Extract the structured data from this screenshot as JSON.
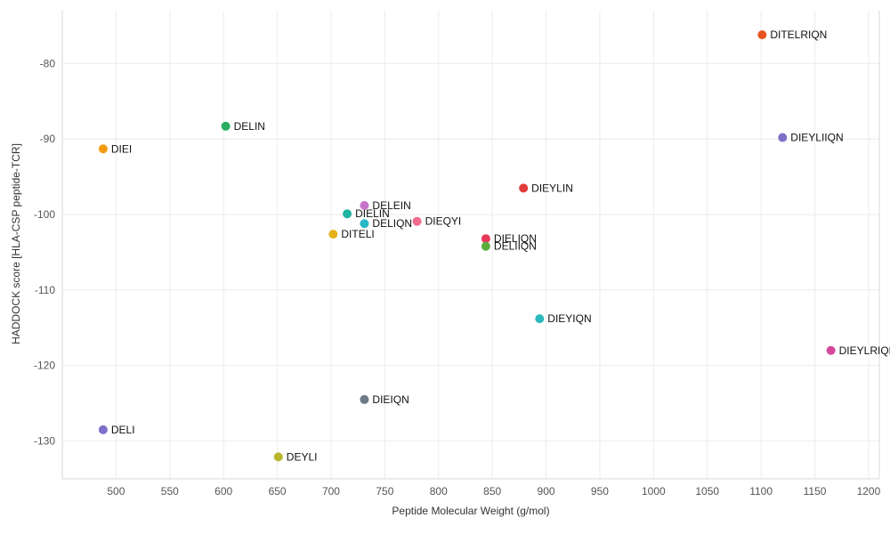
{
  "chart_data": {
    "type": "scatter",
    "title": "",
    "xlabel": "Peptide Molecular Weight (g/mol)",
    "ylabel": "HADDOCK score [HLA-CSP peptide-TCR]",
    "xlim": [
      450,
      1210
    ],
    "ylim": [
      -135,
      -73
    ],
    "xticks": [
      500,
      550,
      600,
      650,
      700,
      750,
      800,
      850,
      900,
      950,
      1000,
      1050,
      1100,
      1150,
      1200
    ],
    "yticks": [
      -80,
      -90,
      -100,
      -110,
      -120,
      -130
    ],
    "grid": true,
    "legend": "none",
    "points": [
      {
        "label": "DITELRIQN",
        "x": 1101,
        "y": -76.2,
        "color": "#e8541e"
      },
      {
        "label": "DELIN",
        "x": 602,
        "y": -88.3,
        "color": "#27ae60"
      },
      {
        "label": "DIEYLIIQN",
        "x": 1120,
        "y": -89.8,
        "color": "#7e6fc9"
      },
      {
        "label": "DIEI",
        "x": 488,
        "y": -91.3,
        "color": "#f39c12"
      },
      {
        "label": "DIEYLIN",
        "x": 879,
        "y": -96.5,
        "color": "#e03a3a"
      },
      {
        "label": "DELEIN",
        "x": 731,
        "y": -98.8,
        "color": "#c473c8"
      },
      {
        "label": "DIELIN",
        "x": 715,
        "y": -99.9,
        "color": "#1fb5a2"
      },
      {
        "label": "DELIQN",
        "x": 731,
        "y": -101.2,
        "color": "#29b6c6"
      },
      {
        "label": "DIEQYI",
        "x": 780,
        "y": -100.9,
        "color": "#f06b8c"
      },
      {
        "label": "DITELI",
        "x": 702,
        "y": -102.6,
        "color": "#e5b21b"
      },
      {
        "label": "DIELIQN",
        "x": 844,
        "y": -103.2,
        "color": "#e8385a"
      },
      {
        "label": "DELIIQN",
        "x": 844,
        "y": -104.2,
        "color": "#5cae3a"
      },
      {
        "label": "DIEYIQN",
        "x": 894,
        "y": -113.8,
        "color": "#2bb8bd"
      },
      {
        "label": "DIEYLRIQN",
        "x": 1165,
        "y": -118.0,
        "color": "#d2489a"
      },
      {
        "label": "DIEIQN",
        "x": 731,
        "y": -124.5,
        "color": "#6c7a89"
      },
      {
        "label": "DELI",
        "x": 488,
        "y": -128.5,
        "color": "#7e6fc9"
      },
      {
        "label": "DEYLI",
        "x": 651,
        "y": -132.1,
        "color": "#b9b62b"
      }
    ]
  }
}
